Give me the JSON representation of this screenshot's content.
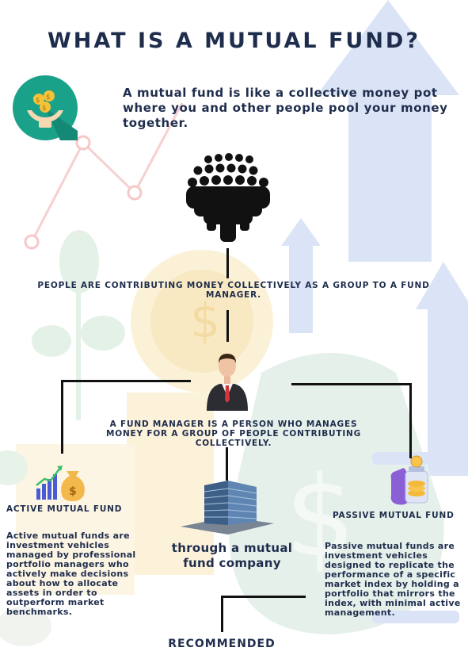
{
  "title": "WHAT IS A MUTUAL FUND?",
  "intro": "A mutual fund is like a collective money pot where you and other people pool your money together.",
  "people_caption": "PEOPLE ARE CONTRIBUTING MONEY COLLECTIVELY AS A GROUP TO A FUND MANAGER.",
  "manager_caption": "A FUND MANAGER IS A PERSON WHO MANAGES MONEY FOR A GROUP OF PEOPLE CONTRIBUTING COLLECTIVELY.",
  "active": {
    "heading": "ACTIVE MUTUAL FUND",
    "description": "Active mutual funds are investment vehicles managed by professional portfolio managers who actively make decisions about how to allocate assets in order to outperform market benchmarks."
  },
  "company_caption": "through a mutual fund company",
  "passive": {
    "heading": "PASSIVE MUTUAL FUND",
    "description": "Passive mutual funds are investment vehicles designed to replicate the performance of a specific market index by holding a portfolio that mirrors the index, with minimal active management."
  },
  "recommended": "RECOMMENDED",
  "icons": {
    "hero": "hands-holding-coins-icon",
    "people": "crowd-icon",
    "manager": "businessman-icon",
    "active": "growth-chart-money-bag-icon",
    "company": "office-building-icon",
    "passive": "coin-jar-icon"
  },
  "colors": {
    "text": "#1f2d4d",
    "teal": "#1aa18a",
    "lines": "#111111"
  }
}
